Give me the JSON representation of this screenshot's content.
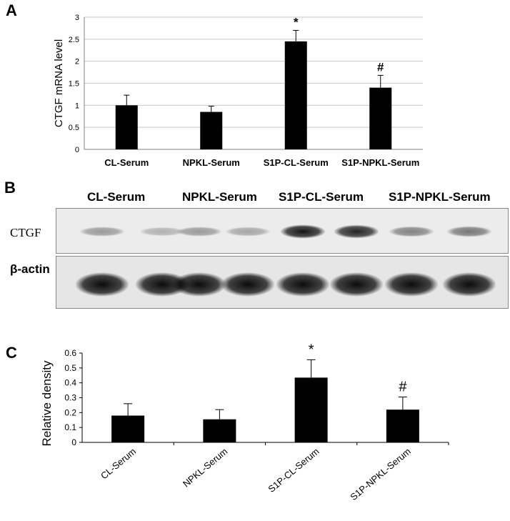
{
  "panels": {
    "a_letter": "A",
    "b_letter": "B",
    "c_letter": "C"
  },
  "blot": {
    "lane_groups": [
      "CL-Serum",
      "NPKL-Serum",
      "S1P-CL-Serum",
      "S1P-NPKL-Serum"
    ],
    "ctgf_label": "CTGF",
    "actin_label": "β-actin",
    "ctgf_band_intensity": [
      0.35,
      0.25,
      0.35,
      0.3,
      0.9,
      0.85,
      0.45,
      0.5
    ],
    "actin_band_intensity": [
      0.95,
      0.95,
      0.95,
      0.95,
      0.95,
      0.95,
      0.95,
      0.95
    ],
    "background_color": "#ececec"
  },
  "chart_data": [
    {
      "type": "bar",
      "categories": [
        "CL-Serum",
        "NPKL-Serum",
        "S1P-CL-Serum",
        "S1P-NPKL-Serum"
      ],
      "values": [
        1.0,
        0.85,
        2.45,
        1.4
      ],
      "errors": [
        0.23,
        0.13,
        0.25,
        0.28
      ],
      "annotations": [
        "",
        "",
        "*",
        "#"
      ],
      "ylabel": "CTGF mRNA level",
      "ylim": [
        0,
        3
      ],
      "yticks": [
        "0",
        "0.5",
        "1",
        "1.5",
        "2",
        "2.5",
        "3"
      ],
      "grid": true,
      "bar_color": "#000000",
      "grid_color": "#c8c8c8"
    },
    {
      "type": "bar",
      "categories": [
        "CL-Serum",
        "NPKL-Serum",
        "S1P-CL-Serum",
        "S1P-NPKL-Serum"
      ],
      "values": [
        0.18,
        0.155,
        0.435,
        0.22
      ],
      "errors": [
        0.08,
        0.065,
        0.12,
        0.085
      ],
      "annotations": [
        "",
        "",
        "*",
        "#"
      ],
      "ylabel": "Relative density",
      "ylim": [
        0,
        0.6
      ],
      "yticks": [
        "0",
        "0.1",
        "0.2",
        "0.3",
        "0.4",
        "0.5",
        "0.6"
      ],
      "grid": false,
      "bar_color": "#000000"
    }
  ]
}
